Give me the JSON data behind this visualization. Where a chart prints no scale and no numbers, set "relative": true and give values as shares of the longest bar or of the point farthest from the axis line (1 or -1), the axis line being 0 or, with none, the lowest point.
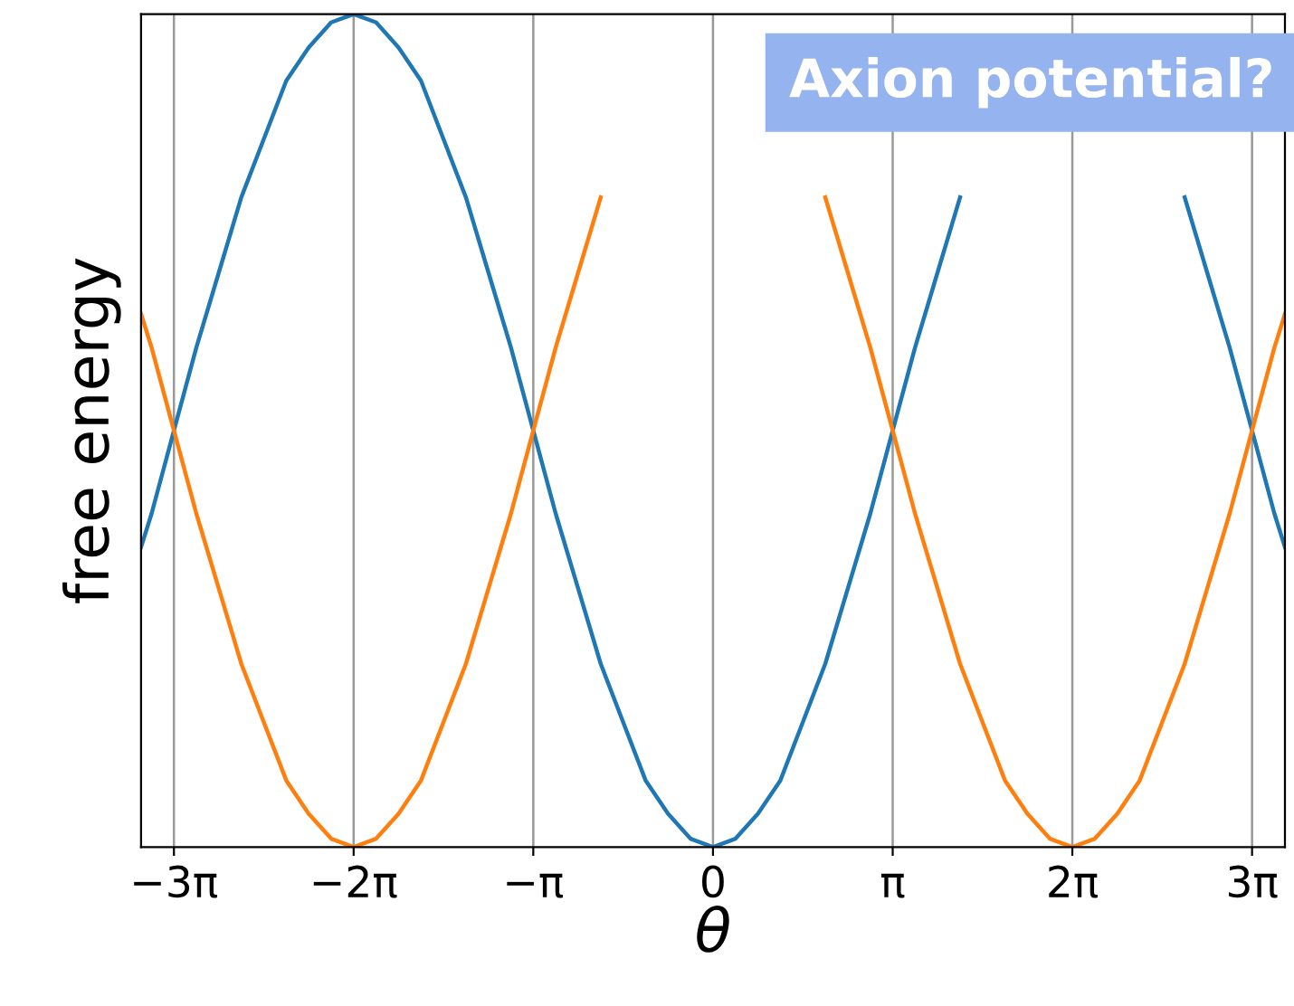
{
  "chart_data": {
    "type": "line",
    "title": "Axion potential?",
    "xlabel": "θ",
    "ylabel": "free energy",
    "relative": true,
    "grid": "x",
    "x": [
      -10.0,
      -9.817,
      -9.425,
      -9.032,
      -8.639,
      -8.247,
      -7.854,
      -7.461,
      -7.069,
      -6.676,
      -6.283,
      -5.89,
      -5.498,
      -5.105,
      -4.712,
      -4.32,
      -3.927,
      -3.534,
      -3.142,
      -2.749,
      -2.356,
      -1.963,
      -1.571,
      -1.178,
      -0.785,
      -0.393,
      0,
      0.393,
      0.785,
      1.178,
      1.571,
      1.963,
      2.356,
      2.749,
      3.142,
      3.534,
      3.927,
      4.32,
      4.712,
      5.105,
      5.498,
      5.89,
      6.283,
      6.676,
      7.069,
      7.461,
      7.854,
      8.247,
      8.639,
      9.032,
      9.425,
      9.817,
      10.0
    ],
    "xlim": [
      -10.0,
      10.0
    ],
    "xticks": [
      {
        "value": -9.425,
        "label": "−3π"
      },
      {
        "value": -6.283,
        "label": "−2π"
      },
      {
        "value": -3.142,
        "label": "−π"
      },
      0,
      {
        "value": 3.142,
        "label": "π"
      },
      {
        "value": 6.283,
        "label": "2π"
      },
      {
        "value": 9.425,
        "label": "3π"
      }
    ],
    "series": [
      {
        "color": "#1f77b4",
        "values": [
          0.36,
          0.4,
          0.5,
          0.6,
          0.69,
          0.78,
          0.85,
          0.92,
          0.96,
          0.99,
          1,
          0.99,
          0.96,
          0.92,
          0.85,
          0.78,
          0.69,
          0.6,
          0.5,
          0.4,
          0.31,
          0.22,
          0.15,
          0.08,
          0.04,
          0.01,
          0,
          0.01,
          0.04,
          0.08,
          0.15,
          0.22,
          0.31,
          0.4,
          0.5,
          0.6,
          0.69,
          0.78,
          null,
          null,
          null,
          null,
          null,
          null,
          null,
          null,
          null,
          0.78,
          0.69,
          0.6,
          0.5,
          0.4,
          0.36
        ]
      },
      {
        "color": "#ff7f0e",
        "values": [
          0.64,
          0.6,
          0.5,
          0.4,
          0.31,
          0.22,
          0.15,
          0.08,
          0.04,
          0.01,
          0,
          0.01,
          0.04,
          0.08,
          0.15,
          0.22,
          0.31,
          0.4,
          0.5,
          0.6,
          0.69,
          0.78,
          null,
          null,
          null,
          null,
          null,
          null,
          null,
          null,
          null,
          0.78,
          0.69,
          0.6,
          0.5,
          0.4,
          0.31,
          0.22,
          0.15,
          0.08,
          0.04,
          0.01,
          0,
          0.01,
          0.04,
          0.08,
          0.15,
          0.22,
          0.31,
          0.4,
          0.5,
          0.6,
          0.64
        ]
      }
    ]
  }
}
